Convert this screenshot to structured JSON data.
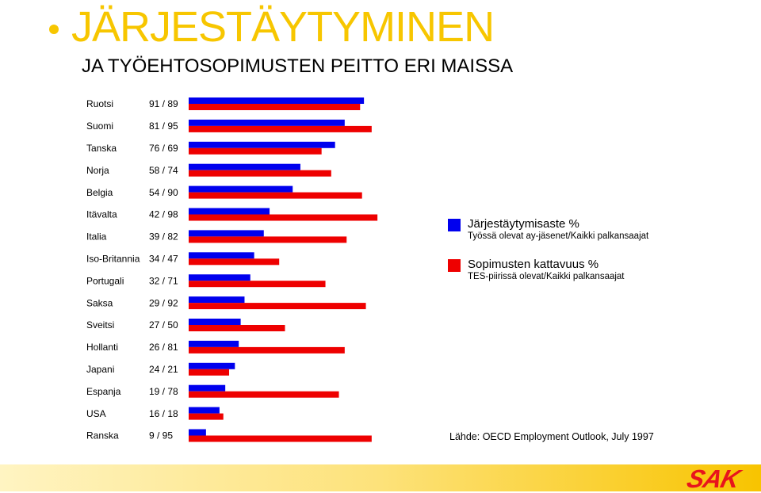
{
  "header": {
    "title": "JÄRJESTÄYTYMINEN",
    "subtitle": "JA TYÖEHTOSOPIMUSTEN PEITTO ERI MAISSA"
  },
  "legend": [
    {
      "label": "Järjestäytymisaste %",
      "sub": "Työssä olevat ay-jäsenet/Kaikki palkansaajat",
      "color": "#0000ee"
    },
    {
      "label": "Sopimusten kattavuus %",
      "sub": "TES-piirissä olevat/Kaikki palkansaajat",
      "color": "#ee0000"
    }
  ],
  "source": "Lähde: OECD Employment Outlook, July 1997",
  "logo": {
    "text": "SAK",
    "color": "#e8141c"
  },
  "chart_data": {
    "type": "bar",
    "orientation": "horizontal",
    "categories": [
      "Ruotsi",
      "Suomi",
      "Tanska",
      "Norja",
      "Belgia",
      "Itävalta",
      "Italia",
      "Iso-Britannia",
      "Portugali",
      "Saksa",
      "Sveitsi",
      "Hollanti",
      "Japani",
      "Espanja",
      "USA",
      "Ranska"
    ],
    "value_labels": [
      "91 / 89",
      "81 / 95",
      "76 / 69",
      "58 / 74",
      "54 / 90",
      "42 / 98",
      "39 / 82",
      "34 / 47",
      "32 / 71",
      "29 / 92",
      "27 / 50",
      "26 / 81",
      "24 / 21",
      "19 / 78",
      "16 / 18",
      "9 / 95"
    ],
    "series": [
      {
        "name": "Järjestäytymisaste %",
        "color": "#0000ee",
        "values": [
          91,
          81,
          76,
          58,
          54,
          42,
          39,
          34,
          32,
          29,
          27,
          26,
          24,
          19,
          16,
          9
        ]
      },
      {
        "name": "Sopimusten kattavuus %",
        "color": "#ee0000",
        "values": [
          89,
          95,
          69,
          74,
          90,
          98,
          82,
          47,
          71,
          92,
          50,
          81,
          21,
          78,
          18,
          95
        ]
      }
    ],
    "xlim": [
      0,
      100
    ],
    "grid": false,
    "axes_visible": false,
    "legend_position": "right"
  }
}
